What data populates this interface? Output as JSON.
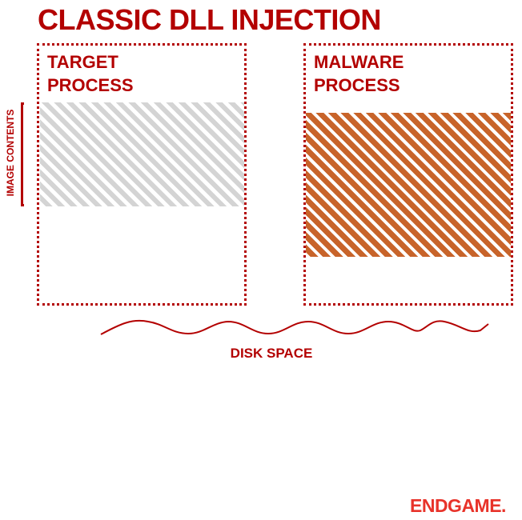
{
  "title": "CLASSIC DLL INJECTION",
  "target": {
    "line1": "TARGET",
    "line2": "PROCESS"
  },
  "malware": {
    "line1": "MALWARE",
    "line2": "PROCESS"
  },
  "side_label": "IMAGE CONTENTS",
  "disk_label": "DISK SPACE",
  "logo": "ENDGAME.",
  "colors": {
    "accent": "#b30000",
    "hatch_gray": "#d4d4d4",
    "hatch_orange": "#c8642a",
    "logo": "#e8332a"
  }
}
